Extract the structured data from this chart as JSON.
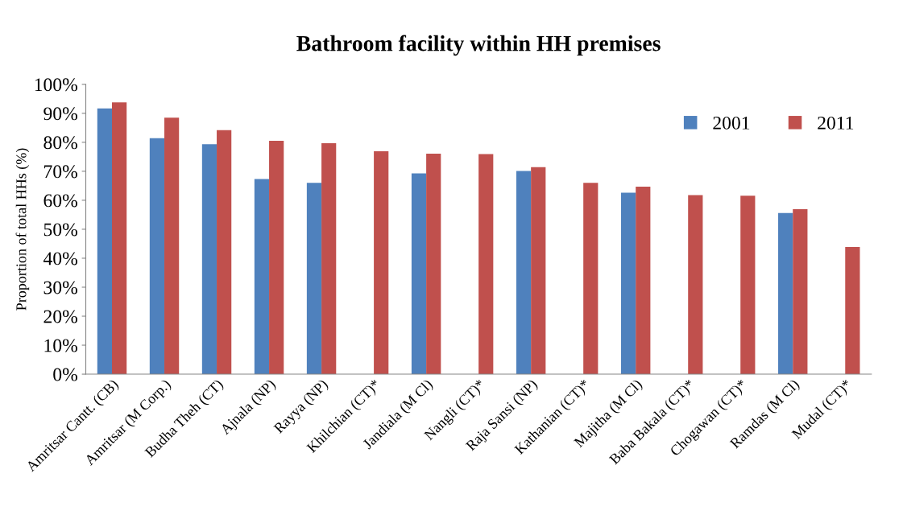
{
  "chart_data": {
    "type": "bar",
    "title": "Bathroom facility within HH premises",
    "ylabel": "Proportion of total HHs (%)",
    "categories": [
      "Amritsar Cantt. (CB)",
      "Amritsar (M Corp.)",
      "Budha Theh (CT)",
      "Ajnala (NP)",
      "Rayya (NP)",
      "Khilchian (CT)*",
      "Jandiala (M Cl)",
      "Nangli (CT)*",
      "Raja Sansi (NP)",
      "Kathanian (CT)*",
      "Majitha (M Cl)",
      "Baba Bakala (CT)*",
      "Chogawan (CT)*",
      "Ramdas (M Cl)",
      "Mudal (CT)*"
    ],
    "series": [
      {
        "name": "2001",
        "color": "#4f81bd",
        "values": [
          91.7,
          81.4,
          79.3,
          67.3,
          66.0,
          null,
          69.3,
          null,
          70.1,
          null,
          62.6,
          null,
          null,
          55.6,
          null
        ]
      },
      {
        "name": "2011",
        "color": "#c0504d",
        "values": [
          93.8,
          88.5,
          84.2,
          80.5,
          79.7,
          76.9,
          76.1,
          75.9,
          71.4,
          66.0,
          64.7,
          61.8,
          61.6,
          56.9,
          43.9
        ]
      }
    ],
    "ylim": [
      0,
      100
    ],
    "yticks": [
      {
        "value": 0,
        "label": "0%"
      },
      {
        "value": 10,
        "label": "10%"
      },
      {
        "value": 20,
        "label": "20%"
      },
      {
        "value": 30,
        "label": "30%"
      },
      {
        "value": 40,
        "label": "40%"
      },
      {
        "value": 50,
        "label": "50%"
      },
      {
        "value": 60,
        "label": "60%"
      },
      {
        "value": 70,
        "label": "70%"
      },
      {
        "value": 80,
        "label": "80%"
      },
      {
        "value": 90,
        "label": "90%"
      },
      {
        "value": 100,
        "label": "100%"
      }
    ],
    "legend": "top right",
    "grid": false
  }
}
